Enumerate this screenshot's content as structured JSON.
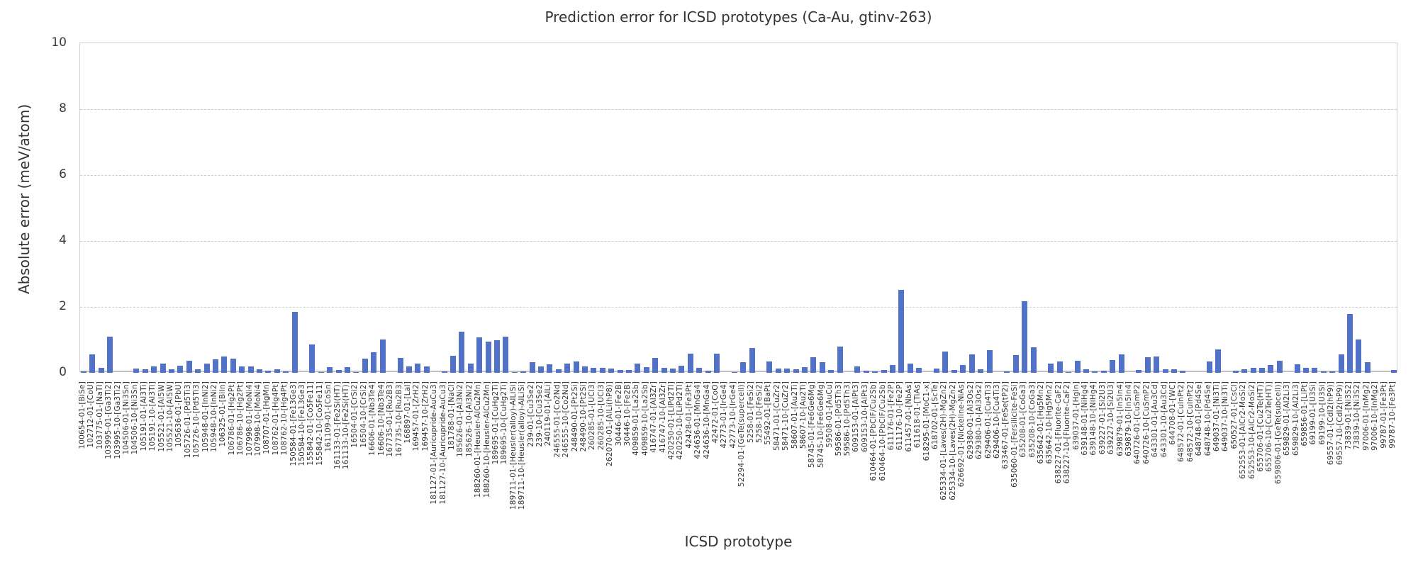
{
  "title": "Prediction error for ICSD prototypes (Ca-Au, gtinv-263)",
  "colors": {
    "bar": "#5272c8",
    "grid": "#cccccc",
    "text": "#333333"
  },
  "chart_data": {
    "type": "bar",
    "title": "Prediction error for ICSD prototypes (Ca-Au, gtinv-263)",
    "xlabel": "ICSD prototype",
    "ylabel": "Absolute error (meV/atom)",
    "ylim": [
      0,
      10
    ],
    "yticks": [
      0,
      2,
      4,
      6,
      8,
      10
    ],
    "grid": "horizontal-dashed",
    "legend_position": "none",
    "bar_color": "#5272c8",
    "categories": [
      "100654-01-[BiSe]",
      "102712-01-[CoU]",
      "103775-01-[NaTl]",
      "103995-01-[Ga3Ti2]",
      "103995-10-[Ga3Ti2]",
      "104506-01-[Ni3Sn]",
      "104506-10-[Ni3Sn]",
      "105191-01-[Al3Ti]",
      "105191-10-[Al3Ti]",
      "105521-01-[Al5W]",
      "105521-10-[Al5W]",
      "105636-01-[PbU]",
      "105726-01-[Pd5Ti3]",
      "105726-10-[Pd5Ti3]",
      "105948-01-[InNi2]",
      "105948-10-[InNi2]",
      "106325-01-[BiIn]",
      "106786-01-[Hg2Pt]",
      "106786-10-[Hg2Pt]",
      "107998-01-[MoNi4]",
      "107998-10-[MoNi4]",
      "108707-01-[HgMn]",
      "108762-01-[Hg4Pt]",
      "108762-10-[Hg4Pt]",
      "150584-01-[Fe13Ge3]",
      "150584-10-[Fe13Ge3]",
      "155842-01-[Co5Fe11]",
      "155842-10-[Co5Fe11]",
      "161109-01-[CoSn]",
      "161133-01-[Fe2Si(HT)]",
      "161133-10-[Fe2Si(HT)]",
      "16504-01-[CrSi2]",
      "16504-10-[CrSi2]",
      "16606-01-[Nb3Te4]",
      "16606-10-[Nb3Te4]",
      "167735-01-[Ru2B3]",
      "167735-10-[Ru2B3]",
      "168897-01-[LaI]",
      "169457-01-[ZrH2]",
      "169457-10-[ZrH2]",
      "181127-01-[Auricupride-AuCu3]",
      "181127-10-[Auricupride-AuCu3]",
      "181788-01-[NaCl]",
      "185626-01-[Al3Ni2]",
      "185626-10-[Al3Ni2]",
      "188260-01-[Heusler-AlCu2Mn]",
      "188260-10-[Heusler-AlCu2Mn]",
      "189695-01-[CuHg2Ti]",
      "189695-10-[CuHg2Ti]",
      "189711-01-[Heusler(alloy)-AlLiSi]",
      "189711-10-[Heusler(alloy)-AlLiSi]",
      "239-01-[Cu3Se2]",
      "239-10-[Cu3Se2]",
      "240119-01-[AlLi]",
      "246555-01-[Co2Nd]",
      "246555-10-[Co2Nd]",
      "248490-01-[Pt2Si]",
      "248490-10-[Pt2Si]",
      "260285-01-[UCl3]",
      "260285-10-[UCl3]",
      "262070-01-[AlLi(hP8)]",
      "30446-01-[Fe2B]",
      "30446-10-[Fe2B]",
      "409859-01-[La2Sb]",
      "409859-10-[La2Sb]",
      "416747-01-[Al3Zr]",
      "416747-10-[Al3Zr]",
      "420250-01-[LiPd2Tl]",
      "420250-10-[LiPd2Tl]",
      "42428-01-[Fe3Pt]",
      "424636-01-[MnGa4]",
      "424636-10-[MnGa4]",
      "42472-01-[CoO]",
      "42773-01-[IrGe4]",
      "42773-10-[IrGe4]",
      "52294-01-[GeTe(supercell)]",
      "5258-01-[FeSi2]",
      "5258-10-[FeSi2]",
      "55492-01-[BaPt]",
      "58471-01-[CuZr2]",
      "58471-10-[CuZr2]",
      "58607-01-[Au2Ti]",
      "58607-10-[Au2Ti]",
      "58745-01-[Fe6Ge6Mg]",
      "58745-10-[Fe6Ge6Mg]",
      "59508-01-[AuCu]",
      "59586-01-[Pd5Th3]",
      "59586-10-[Pd5Th3]",
      "609153-01-[AlPt3]",
      "609153-10-[AlPt3]",
      "610464-01-[PbClF/Cu2Sb]",
      "610464-10-[PbClF/Cu2Sb]",
      "611176-01-[Fe2P]",
      "611176-10-[Fe2P]",
      "611457-01-[NbAs]",
      "611618-01-[TiAs]",
      "618295-01-[MoC1-x]",
      "618702-01-[ScTe]",
      "625334-01-[Laves(2H)-MgZn2]",
      "625334-10-[Laves(2H)-MgZn2]",
      "626692-01-[Nickeline-NiAs]",
      "629380-01-[Al3Os2]",
      "629380-10-[Al3Os2]",
      "629406-01-[Cu4Ti3]",
      "629406-10-[Cu4Ti3]",
      "633467-01-[FeSe(tP2)]",
      "635060-01-[Fersilicite-FeSi]",
      "635208-01-[CoGa3]",
      "635208-10-[CoGa3]",
      "635642-01-[Hg5Mn2]",
      "635642-10-[Hg5Mn2]",
      "638227-01-[Fluorite-CaF2]",
      "638227-10-[Fluorite-CaF2]",
      "639037-01-[HgIn]",
      "639148-01-[NiHg4]",
      "639148-10-[NiHg4]",
      "639227-01-[Si2U3]",
      "639227-10-[Si2U3]",
      "639879-01-[In5In4]",
      "639879-10-[In5In4]",
      "640726-01-[CuSmP2]",
      "640726-10-[CuSmP2]",
      "643301-01-[Au3Cd]",
      "643301-10-[Au3Cd]",
      "644708-01-[WC]",
      "648572-01-[CuInPt2]",
      "648572-10-[CuInPt2]",
      "648748-01-[Pd4Se]",
      "648748-10-[Pd4Se]",
      "649037-01-[Ni3Ti]",
      "649037-10-[Ni3Ti]",
      "650527-01-[CsCl]",
      "652553-01-[AlCr2-MoSi2]",
      "652553-10-[AlCr2-MoSi2]",
      "655706-01-[Cu2Te(HT)]",
      "655706-10-[Cu2Te(HT)]",
      "659806-01-[GeTe(subcell)]",
      "659829-01-[Al2Li3]",
      "659829-10-[Al2Li3]",
      "659856-01-[LiPt]",
      "69199-01-[U3Si]",
      "69199-10-[U3Si]",
      "69557-01-[CdI2(hP9)]",
      "69557-10-[CdI2(hP9)]",
      "73839-01-[Ni3S2]",
      "73839-10-[Ni3S2]",
      "97006-01-[InMg2]",
      "97006-10-[InMg2]",
      "99787-01-[Fe3Pt]",
      "99787-10-[Fe3Pt]"
    ],
    "values": [
      0.05,
      0.55,
      0.15,
      1.1,
      0,
      0,
      0.13,
      0.11,
      0.19,
      0.29,
      0.11,
      0.22,
      0.36,
      0.11,
      0.29,
      0.41,
      0.5,
      0.42,
      0.19,
      0.2,
      0.1,
      0.06,
      0.11,
      0.04,
      1.85,
      0,
      0.85,
      0.03,
      0.18,
      0.08,
      0.17,
      0.03,
      0.44,
      0.63,
      1.0,
      0,
      0.45,
      0.2,
      0.29,
      0.2,
      0,
      0.04,
      0.52,
      1.25,
      0.27,
      1.08,
      0.95,
      0.98,
      1.1,
      0.03,
      0.04,
      0.32,
      0.2,
      0.25,
      0.1,
      0.28,
      0.35,
      0.2,
      0.15,
      0.15,
      0.13,
      0.08,
      0.08,
      0.27,
      0.18,
      0.45,
      0.16,
      0.13,
      0.21,
      0.57,
      0.16,
      0.07,
      0.58,
      0,
      0.03,
      0.32,
      0.75,
      0,
      0.35,
      0.12,
      0.13,
      0.11,
      0.18,
      0.48,
      0.32,
      0.08,
      0.8,
      0,
      0.2,
      0.06,
      0.05,
      0.08,
      0.24,
      2.52,
      0.29,
      0.15,
      0,
      0.13,
      0.65,
      0.08,
      0.24,
      0.56,
      0.11,
      0.68,
      0,
      0.04,
      0.54,
      2.18,
      0.78,
      0,
      0.29,
      0.35,
      0.03,
      0.36,
      0.11,
      0.05,
      0.06,
      0.38,
      0.56,
      0,
      0.09,
      0.47,
      0.49,
      0.1,
      0.11,
      0.06,
      0,
      0,
      0.35,
      0.71,
      0,
      0.06,
      0.11,
      0.16,
      0.15,
      0.24,
      0.36,
      0,
      0.25,
      0.15,
      0.15,
      0.05,
      0.05,
      0.56,
      1.78,
      1.02,
      0.33,
      0,
      0,
      0.09
    ]
  }
}
